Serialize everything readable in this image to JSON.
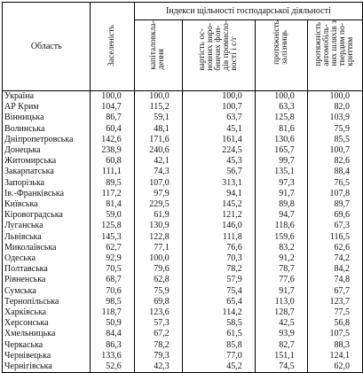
{
  "header": {
    "region_label": "Область",
    "group_label": "Індекси щільності господарської діяльності",
    "col1": "Заселеність",
    "col2": "капіталовкла-\nдення",
    "col3": "вартість ос-\nновних виро-\nбничих фон-\nдів промисло-\nвості і с/г",
    "col4": "протяжність\nзалізниць",
    "col5": "протяжність\nавтомобіль-\nних шляхів з\nтвердим по-\nкриттям"
  },
  "rows": [
    {
      "name": "Україна",
      "v": [
        "100,0",
        "100,0",
        "100,0",
        "100,0",
        "100,0"
      ],
      "bold": [
        true,
        true,
        true,
        true,
        true
      ],
      "name_bold": true
    },
    {
      "name": "АР Крим",
      "v": [
        "104,7",
        "115,2",
        "100,7",
        "63,3",
        "82,0"
      ],
      "bold": [
        false,
        false,
        false,
        false,
        false
      ]
    },
    {
      "name": "Вінницька",
      "v": [
        "86,7",
        "59,1",
        "63,7",
        "125,8",
        "103,9"
      ],
      "bold": [
        false,
        false,
        false,
        false,
        false
      ]
    },
    {
      "name": "Волинська",
      "v": [
        "60,4",
        "48,1",
        "45,1",
        "81,6",
        "75,9"
      ],
      "bold": [
        false,
        false,
        true,
        false,
        false
      ]
    },
    {
      "name": "Дніпропетровська",
      "v": [
        "142,6",
        "171,6",
        "161,4",
        "130,6",
        "85,5"
      ],
      "bold": [
        false,
        false,
        true,
        false,
        false
      ]
    },
    {
      "name": "Донецька",
      "v": [
        "238,9",
        "240,6",
        "224,5",
        "165,7",
        "100,7"
      ],
      "bold": [
        false,
        true,
        true,
        true,
        false
      ]
    },
    {
      "name": "Житомирська",
      "v": [
        "60,8",
        "42,1",
        "45,3",
        "99,7",
        "82,6"
      ],
      "bold": [
        false,
        true,
        false,
        false,
        false
      ]
    },
    {
      "name": "Закарпатська",
      "v": [
        "111,1",
        "74,3",
        "56,7",
        "135,1",
        "88,4"
      ],
      "bold": [
        false,
        false,
        false,
        false,
        false
      ]
    },
    {
      "name": "Запорізька",
      "v": [
        "89,5",
        "107,0",
        "313,1",
        "97,3",
        "76,5"
      ],
      "bold": [
        false,
        false,
        false,
        false,
        false
      ]
    },
    {
      "name": "Ів.-Франківська",
      "v": [
        "117,2",
        "97,9",
        "94,1",
        "91,7",
        "107,8"
      ],
      "bold": [
        false,
        false,
        false,
        false,
        false
      ]
    },
    {
      "name": "Київська",
      "v": [
        "81,4",
        "229,5",
        "145,2",
        "89,8",
        "89,7"
      ],
      "bold": [
        false,
        true,
        false,
        false,
        false
      ]
    },
    {
      "name": "Кіровоградська",
      "v": [
        "59,0",
        "61,9",
        "121,2",
        "94,7",
        "69,6"
      ],
      "bold": [
        false,
        false,
        false,
        false,
        false
      ]
    },
    {
      "name": "Луганська",
      "v": [
        "125,8",
        "130,9",
        "146,0",
        "118,6",
        "67,3"
      ],
      "bold": [
        false,
        false,
        false,
        false,
        false
      ]
    },
    {
      "name": "Львівська",
      "v": [
        "145,3",
        "122,8",
        "111,8",
        "159,6",
        "116,5"
      ],
      "bold": [
        false,
        false,
        false,
        true,
        true
      ]
    },
    {
      "name": "Миколаївська",
      "v": [
        "62,7",
        "77,1",
        "76,6",
        "83,2",
        "62,6"
      ],
      "bold": [
        false,
        false,
        false,
        false,
        false
      ]
    },
    {
      "name": "Одеська",
      "v": [
        "92,9",
        "100,0",
        "70,3",
        "91,2",
        "74,2"
      ],
      "bold": [
        false,
        false,
        false,
        false,
        false
      ]
    },
    {
      "name": "Полтавська",
      "v": [
        "70,5",
        "79,6",
        "78,2",
        "78,7",
        "84,2"
      ],
      "bold": [
        false,
        false,
        false,
        false,
        false
      ]
    },
    {
      "name": "Рівненська",
      "v": [
        "68,7",
        "62,8",
        "57,9",
        "77,6",
        "74,8"
      ],
      "bold": [
        false,
        false,
        false,
        false,
        false
      ]
    },
    {
      "name": "Сумська",
      "v": [
        "70,6",
        "75,9",
        "75,4",
        "91,7",
        "67,7"
      ],
      "bold": [
        false,
        false,
        false,
        false,
        false
      ]
    },
    {
      "name": "Тернопільська",
      "v": [
        "98,5",
        "69,8",
        "65,4",
        "113,0",
        "123,7"
      ],
      "bold": [
        false,
        false,
        false,
        false,
        false
      ]
    },
    {
      "name": "Харківська",
      "v": [
        "118,7",
        "123,6",
        "114,2",
        "128,7",
        "77,5"
      ],
      "bold": [
        false,
        false,
        false,
        false,
        false
      ]
    },
    {
      "name": "Херсонська",
      "v": [
        "50,9",
        "57,3",
        "58,5",
        "42,5",
        "56,8"
      ],
      "bold": [
        false,
        false,
        false,
        true,
        true
      ]
    },
    {
      "name": "Хмельницька",
      "v": [
        "84,4",
        "67,2",
        "61,5",
        "93,9",
        "107,5"
      ],
      "bold": [
        false,
        false,
        false,
        false,
        false
      ]
    },
    {
      "name": "Черкаська",
      "v": [
        "86,3",
        "78,2",
        "85,8",
        "82,7",
        "88,3"
      ],
      "bold": [
        false,
        false,
        false,
        false,
        false
      ]
    },
    {
      "name": "Чернівецька",
      "v": [
        "133,6",
        "79,3",
        "77,0",
        "151,1",
        "124,1"
      ],
      "bold": [
        false,
        false,
        false,
        true,
        true
      ]
    },
    {
      "name": "Чернігівська",
      "v": [
        "52,6",
        "42,3",
        "45,2",
        "74,5",
        "62,0"
      ],
      "bold": [
        false,
        true,
        false,
        false,
        false
      ]
    }
  ]
}
